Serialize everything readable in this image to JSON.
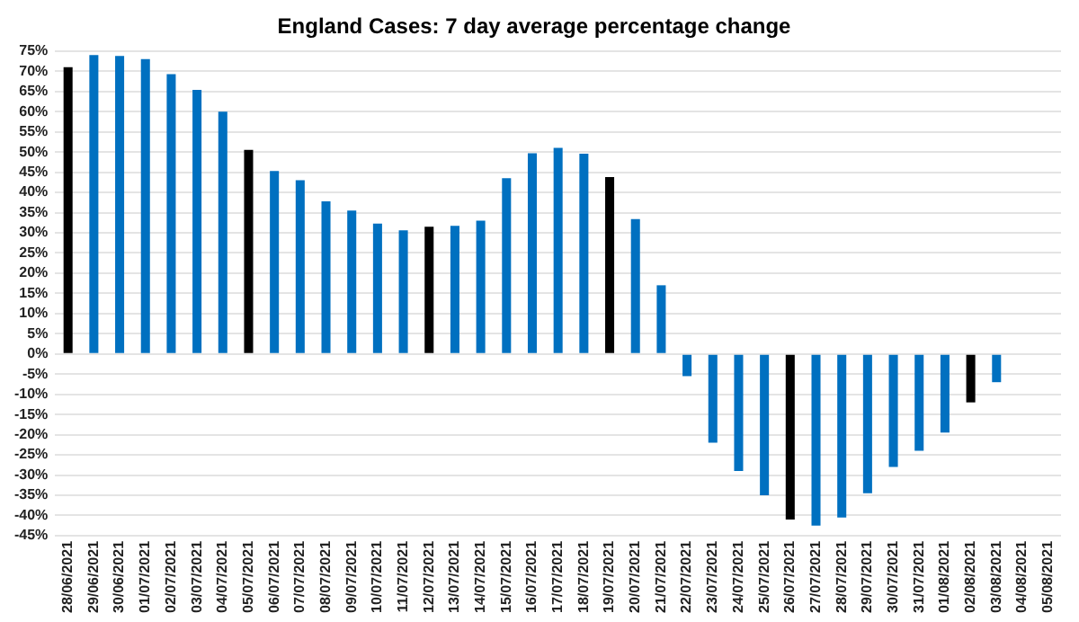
{
  "chart_data": {
    "type": "bar",
    "title": "England Cases: 7 day average percentage change",
    "categories": [
      "28/06/2021",
      "29/06/2021",
      "30/06/2021",
      "01/07/2021",
      "02/07/2021",
      "03/07/2021",
      "04/07/2021",
      "05/07/2021",
      "06/07/2021",
      "07/07/2021",
      "08/07/2021",
      "09/07/2021",
      "10/07/2021",
      "11/07/2021",
      "12/07/2021",
      "13/07/2021",
      "14/07/2021",
      "15/07/2021",
      "16/07/2021",
      "17/07/2021",
      "18/07/2021",
      "19/07/2021",
      "20/07/2021",
      "21/07/2021",
      "22/07/2021",
      "23/07/2021",
      "24/07/2021",
      "25/07/2021",
      "26/07/2021",
      "27/07/2021",
      "28/07/2021",
      "29/07/2021",
      "30/07/2021",
      "31/07/2021",
      "01/08/2021",
      "02/08/2021",
      "03/08/2021",
      "04/08/2021",
      "05/08/2021"
    ],
    "values": [
      71,
      74,
      73.8,
      73,
      69.3,
      65.4,
      60,
      50.5,
      45.3,
      43,
      37.8,
      35.5,
      32.3,
      30.6,
      31.5,
      31.7,
      33,
      43.5,
      49.7,
      51,
      49.6,
      43.8,
      33.4,
      17,
      -5.5,
      -22,
      -29,
      -35,
      -41,
      -42.5,
      -40.5,
      -34.5,
      -28,
      -24,
      -19.5,
      -12,
      -7,
      null,
      null
    ],
    "colors": [
      "#000000",
      "#0070c0",
      "#0070c0",
      "#0070c0",
      "#0070c0",
      "#0070c0",
      "#0070c0",
      "#000000",
      "#0070c0",
      "#0070c0",
      "#0070c0",
      "#0070c0",
      "#0070c0",
      "#0070c0",
      "#000000",
      "#0070c0",
      "#0070c0",
      "#0070c0",
      "#0070c0",
      "#0070c0",
      "#0070c0",
      "#000000",
      "#0070c0",
      "#0070c0",
      "#0070c0",
      "#0070c0",
      "#0070c0",
      "#0070c0",
      "#000000",
      "#0070c0",
      "#0070c0",
      "#0070c0",
      "#0070c0",
      "#0070c0",
      "#0070c0",
      "#000000",
      "#0070c0",
      "#0070c0",
      "#0070c0"
    ],
    "ylim": [
      -45,
      75
    ],
    "yticks": [
      {
        "value": -45,
        "label": "-45%"
      },
      {
        "value": -40,
        "label": "-40%"
      },
      {
        "value": -35,
        "label": "-35%"
      },
      {
        "value": -30,
        "label": "-30%"
      },
      {
        "value": -25,
        "label": "-25%"
      },
      {
        "value": -20,
        "label": "-20%"
      },
      {
        "value": -15,
        "label": "-15%"
      },
      {
        "value": -10,
        "label": "-10%"
      },
      {
        "value": -5,
        "label": "-5%"
      },
      {
        "value": 0,
        "label": "0%"
      },
      {
        "value": 5,
        "label": "5%"
      },
      {
        "value": 10,
        "label": "10%"
      },
      {
        "value": 15,
        "label": "15%"
      },
      {
        "value": 20,
        "label": "20%"
      },
      {
        "value": 25,
        "label": "25%"
      },
      {
        "value": 30,
        "label": "30%"
      },
      {
        "value": 35,
        "label": "35%"
      },
      {
        "value": 40,
        "label": "40%"
      },
      {
        "value": 45,
        "label": "45%"
      },
      {
        "value": 50,
        "label": "50%"
      },
      {
        "value": 55,
        "label": "55%"
      },
      {
        "value": 60,
        "label": "60%"
      },
      {
        "value": 65,
        "label": "65%"
      },
      {
        "value": 70,
        "label": "70%"
      },
      {
        "value": 75,
        "label": "75%"
      }
    ],
    "grid": "y",
    "legend": false
  }
}
